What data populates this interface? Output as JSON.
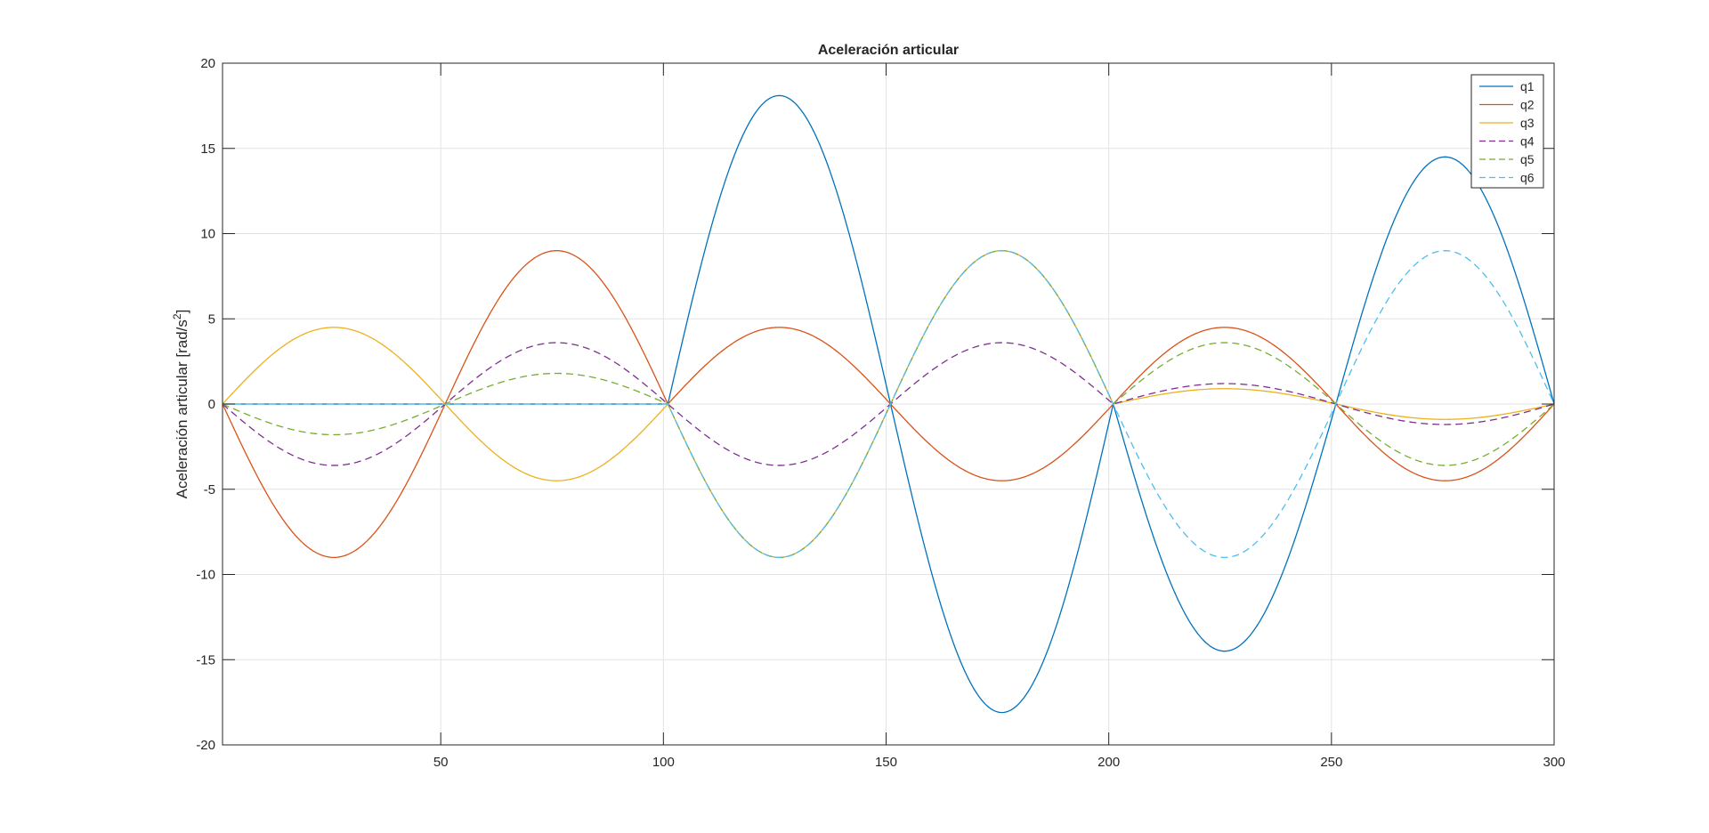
{
  "chart_data": {
    "type": "line",
    "title": "Aceleración articular",
    "xlabel": "",
    "ylabel": "Aceleración articular [rad/s",
    "ylabel_sup": "2",
    "ylabel_end": "]",
    "xlim": [
      1,
      300
    ],
    "ylim": [
      -20,
      20
    ],
    "xticks": [
      50,
      100,
      150,
      200,
      250,
      300
    ],
    "xtick_labels": [
      "50",
      "100",
      "150",
      "200",
      "250",
      "300"
    ],
    "yticks": [
      -20,
      -15,
      -10,
      -5,
      0,
      5,
      10,
      15,
      20
    ],
    "ytick_labels": [
      "-20",
      "-15",
      "-10",
      "-5",
      "0",
      "5",
      "10",
      "15",
      "20"
    ],
    "grid": true,
    "legend_position": "top-right",
    "segment_boundaries": [
      1,
      51,
      101,
      151,
      201,
      251,
      300
    ],
    "series": [
      {
        "name": "q1",
        "color": "#0072BD",
        "dash": "solid",
        "segment_peaks": [
          0,
          0,
          18.1,
          -18.1,
          -14.5,
          14.5
        ]
      },
      {
        "name": "q2",
        "color": "#D95319",
        "dash": "solid",
        "segment_peaks": [
          -9.0,
          9.0,
          4.5,
          -4.5,
          4.5,
          -4.5
        ]
      },
      {
        "name": "q3",
        "color": "#EDB120",
        "dash": "solid",
        "segment_peaks": [
          4.5,
          -4.5,
          -9.0,
          9.0,
          0.9,
          -0.9
        ]
      },
      {
        "name": "q4",
        "color": "#7E2F8E",
        "dash": "dashed",
        "segment_peaks": [
          -3.6,
          3.6,
          -3.6,
          3.6,
          1.2,
          -1.2
        ]
      },
      {
        "name": "q5",
        "color": "#77AC30",
        "dash": "dashed",
        "segment_peaks": [
          -1.8,
          1.8,
          -9.0,
          9.0,
          3.6,
          -3.6
        ]
      },
      {
        "name": "q6",
        "color": "#4DBEEE",
        "dash": "dashed",
        "segment_peaks": [
          0,
          0,
          -9.0,
          9.0,
          -9.0,
          9.0
        ]
      }
    ]
  }
}
